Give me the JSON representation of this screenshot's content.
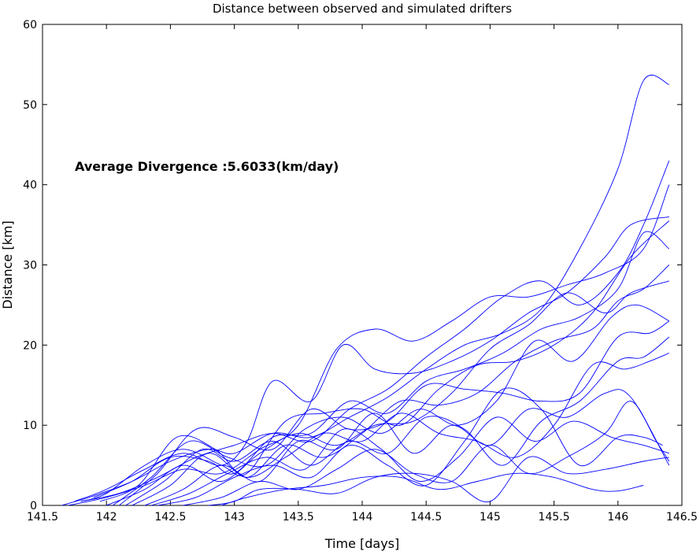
{
  "chart_data": {
    "type": "line",
    "title": "Distance between observed and simulated drifters",
    "xlabel": "Time [days]",
    "ylabel": "Distance [km]",
    "xlim": [
      141.5,
      146.5
    ],
    "ylim": [
      0,
      60
    ],
    "xticks": [
      141.5,
      142,
      142.5,
      143,
      143.5,
      144,
      144.5,
      145,
      145.5,
      146,
      146.5
    ],
    "xtick_labels": [
      "141.5",
      "142",
      "142.5",
      "143",
      "143.5",
      "144",
      "144.5",
      "145",
      "145.5",
      "146",
      "146.5"
    ],
    "yticks": [
      0,
      10,
      20,
      30,
      40,
      50,
      60
    ],
    "ytick_labels": [
      "0",
      "10",
      "20",
      "30",
      "40",
      "50",
      "60"
    ],
    "annotation": "Average Divergence :5.6033(km/day)",
    "grid": false,
    "line_color": "#0000ff",
    "series": [
      {
        "x": [
          141.65,
          141.9,
          142.2,
          142.5,
          142.8,
          143.0,
          143.3,
          143.6,
          143.9,
          144.2,
          144.5,
          144.8,
          145.1,
          145.4,
          145.7,
          146.0,
          146.2,
          146.4
        ],
        "y": [
          0,
          1.2,
          3.0,
          5.5,
          7.0,
          6.5,
          9.0,
          8.5,
          11.0,
          13.5,
          17.0,
          20.0,
          21.5,
          24.5,
          32.0,
          42.0,
          53.0,
          52.5
        ]
      },
      {
        "x": [
          141.75,
          142.0,
          142.3,
          142.6,
          142.9,
          143.1,
          143.3,
          143.6,
          143.85,
          144.1,
          144.4,
          144.7,
          145.0,
          145.3,
          145.6,
          145.9,
          146.1,
          146.4
        ],
        "y": [
          0.5,
          2.0,
          4.5,
          6.5,
          5.0,
          8.0,
          15.5,
          13.0,
          20.0,
          17.0,
          16.5,
          18.0,
          20.5,
          24.0,
          26.5,
          31.0,
          35.0,
          36.0
        ]
      },
      {
        "x": [
          141.8,
          142.1,
          142.4,
          142.7,
          143.0,
          143.3,
          143.6,
          143.9,
          144.2,
          144.5,
          144.8,
          145.1,
          145.4,
          145.7,
          146.0,
          146.2,
          146.4
        ],
        "y": [
          0.5,
          1.5,
          3.5,
          6.0,
          7.5,
          9.0,
          8.0,
          12.0,
          14.5,
          18.5,
          22.0,
          26.0,
          28.0,
          25.0,
          29.0,
          35.0,
          43.0
        ]
      },
      {
        "x": [
          141.7,
          142.0,
          142.3,
          142.6,
          142.9,
          143.2,
          143.5,
          143.8,
          144.1,
          144.4,
          144.7,
          145.0,
          145.3,
          145.6,
          145.9,
          146.2,
          146.4
        ],
        "y": [
          0,
          1.0,
          2.5,
          4.5,
          4.0,
          7.0,
          10.0,
          19.5,
          22.0,
          20.5,
          23.0,
          26.0,
          26.0,
          27.5,
          29.0,
          32.0,
          40.0
        ]
      },
      {
        "x": [
          141.8,
          142.0,
          142.3,
          142.6,
          142.9,
          143.1,
          143.4,
          143.7,
          144.0,
          144.3,
          144.6,
          144.9,
          145.2,
          145.5,
          145.8,
          146.1,
          146.4
        ],
        "y": [
          0.5,
          1.5,
          5.0,
          7.0,
          5.0,
          4.0,
          10.5,
          11.5,
          12.0,
          10.0,
          14.5,
          17.5,
          18.0,
          20.0,
          24.0,
          31.0,
          35.5
        ]
      },
      {
        "x": [
          141.9,
          142.2,
          142.5,
          142.8,
          143.0,
          143.3,
          143.6,
          143.9,
          144.2,
          144.5,
          144.8,
          145.1,
          145.4,
          145.7,
          146.0,
          146.2,
          146.4
        ],
        "y": [
          1.0,
          3.0,
          6.0,
          5.5,
          4.0,
          8.5,
          9.0,
          13.0,
          11.5,
          15.5,
          17.0,
          19.0,
          22.0,
          23.5,
          27.0,
          34.0,
          32.0
        ]
      },
      {
        "x": [
          141.95,
          142.25,
          142.55,
          142.85,
          143.1,
          143.4,
          143.7,
          144.0,
          144.3,
          144.6,
          144.9,
          145.2,
          145.5,
          145.8,
          146.0,
          146.2,
          146.4
        ],
        "y": [
          0.5,
          2.5,
          8.5,
          7.0,
          3.5,
          7.5,
          6.0,
          9.0,
          13.0,
          12.5,
          14.0,
          18.0,
          20.5,
          22.0,
          25.5,
          27.0,
          30.0
        ]
      },
      {
        "x": [
          142.0,
          142.3,
          142.6,
          142.9,
          143.2,
          143.5,
          143.8,
          144.1,
          144.4,
          144.7,
          145.0,
          145.3,
          145.6,
          145.9,
          146.1,
          146.4
        ],
        "y": [
          0,
          2.0,
          5.0,
          3.0,
          6.5,
          9.0,
          7.5,
          10.0,
          10.5,
          14.0,
          19.5,
          22.5,
          26.5,
          24.0,
          26.5,
          28.0
        ]
      },
      {
        "x": [
          142.05,
          142.35,
          142.65,
          142.95,
          143.25,
          143.55,
          143.85,
          144.15,
          144.45,
          144.75,
          145.05,
          145.35,
          145.65,
          145.95,
          146.15,
          146.4
        ],
        "y": [
          0,
          3.5,
          8.0,
          6.0,
          5.0,
          9.5,
          11.0,
          9.0,
          12.0,
          10.0,
          13.0,
          20.5,
          18.0,
          23.5,
          25.0,
          23.0
        ]
      },
      {
        "x": [
          142.1,
          142.4,
          142.7,
          143.0,
          143.3,
          143.6,
          143.9,
          144.2,
          144.5,
          144.8,
          145.1,
          145.4,
          145.7,
          146.0,
          146.25,
          146.4
        ],
        "y": [
          0,
          4.0,
          9.5,
          8.5,
          7.0,
          12.0,
          9.5,
          10.5,
          15.0,
          14.5,
          14.0,
          13.0,
          14.0,
          21.0,
          21.5,
          23.0
        ]
      },
      {
        "x": [
          142.15,
          142.45,
          142.75,
          143.0,
          143.3,
          143.6,
          143.9,
          144.2,
          144.5,
          144.8,
          145.1,
          145.4,
          145.7,
          146.0,
          146.2,
          146.4
        ],
        "y": [
          0,
          3.0,
          7.0,
          5.5,
          8.0,
          5.0,
          8.0,
          6.5,
          11.0,
          9.5,
          5.0,
          10.5,
          13.0,
          18.0,
          18.5,
          21.0
        ]
      },
      {
        "x": [
          142.2,
          142.5,
          142.8,
          143.1,
          143.4,
          143.7,
          144.0,
          144.3,
          144.6,
          144.9,
          145.2,
          145.5,
          145.8,
          146.05,
          146.25,
          146.4
        ],
        "y": [
          0,
          2.5,
          6.5,
          3.5,
          6.0,
          9.0,
          8.0,
          11.5,
          9.0,
          8.0,
          6.0,
          10.0,
          17.5,
          17.0,
          18.0,
          19.0
        ]
      },
      {
        "x": [
          142.3,
          142.6,
          142.9,
          143.2,
          143.5,
          143.8,
          144.1,
          144.4,
          144.7,
          145.0,
          145.3,
          145.6,
          145.9,
          146.1,
          146.4
        ],
        "y": [
          0,
          2.0,
          5.0,
          3.0,
          8.0,
          7.0,
          11.5,
          6.5,
          10.0,
          7.5,
          12.0,
          11.0,
          14.0,
          13.5,
          5.0
        ]
      },
      {
        "x": [
          142.35,
          142.65,
          142.95,
          143.25,
          143.55,
          143.85,
          144.15,
          144.45,
          144.75,
          145.05,
          145.35,
          145.65,
          145.95,
          146.2,
          146.4
        ],
        "y": [
          0,
          1.5,
          4.0,
          6.0,
          4.5,
          9.5,
          7.0,
          3.0,
          6.0,
          11.0,
          8.0,
          10.5,
          8.5,
          7.5,
          6.5
        ]
      },
      {
        "x": [
          142.4,
          142.7,
          143.0,
          143.3,
          143.6,
          143.9,
          144.2,
          144.5,
          144.8,
          145.1,
          145.4,
          145.7,
          146.0,
          146.2,
          146.35
        ],
        "y": [
          0,
          1.0,
          3.5,
          5.0,
          3.5,
          7.5,
          5.0,
          2.5,
          8.0,
          14.5,
          12.0,
          5.0,
          8.5,
          8.5,
          7.5
        ]
      },
      {
        "x": [
          142.6,
          142.9,
          143.2,
          143.5,
          143.8,
          144.1,
          144.4,
          144.7,
          145.0,
          145.3,
          145.6,
          145.9,
          146.1,
          146.3,
          146.4
        ],
        "y": [
          0,
          1.0,
          3.0,
          2.0,
          4.5,
          7.0,
          4.0,
          3.0,
          7.5,
          4.0,
          6.0,
          9.0,
          13.0,
          8.0,
          5.5
        ]
      },
      {
        "x": [
          142.8,
          143.0,
          143.2,
          143.5,
          143.8,
          144.1,
          144.4,
          144.7,
          145.0,
          145.3,
          145.6,
          145.9,
          146.2,
          146.4
        ],
        "y": [
          0,
          0.5,
          2.0,
          2.0,
          1.5,
          3.5,
          4.0,
          3.0,
          0.5,
          6.0,
          4.0,
          4.5,
          5.5,
          6.0
        ]
      },
      {
        "x": [
          142.9,
          143.1,
          143.4,
          143.7,
          144.0,
          144.3,
          144.6,
          144.9,
          145.2,
          145.5,
          145.8,
          146.0,
          146.2
        ],
        "y": [
          0,
          1.0,
          2.0,
          2.5,
          3.5,
          3.5,
          2.0,
          3.0,
          4.0,
          3.5,
          2.0,
          1.8,
          2.5
        ]
      }
    ]
  }
}
